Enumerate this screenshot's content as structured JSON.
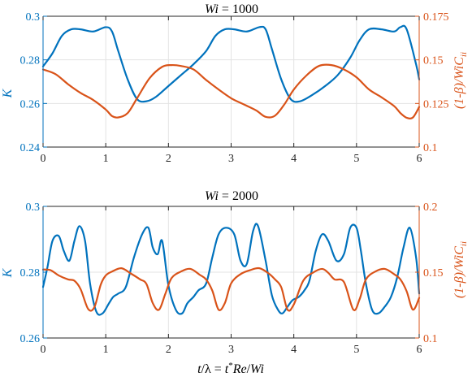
{
  "colors": {
    "left_axis": "#0072BD",
    "right_axis": "#D95319",
    "grid": "#e3e3e3",
    "axis": "#262626"
  },
  "chart_data": [
    {
      "type": "line",
      "title": "Wi = 1000",
      "xlabel": "",
      "ylabel_left": "K",
      "ylabel_right": "(1-β)/WiC_ii",
      "xlim": [
        0,
        6
      ],
      "ylim_left": [
        0.24,
        0.3
      ],
      "ylim_right": [
        0.1,
        0.175
      ],
      "xticks": [
        "0",
        "1",
        "2",
        "3",
        "4",
        "5",
        "6"
      ],
      "yticks_left": [
        "0.24",
        "0.26",
        "0.28",
        "0.3"
      ],
      "yticks_right": [
        "0.1",
        "0.125",
        "0.15",
        "0.175"
      ],
      "grid": true,
      "series": [
        {
          "axis": "left",
          "x": [
            0,
            0.15,
            0.3,
            0.45,
            0.6,
            0.8,
            1.0,
            1.1,
            1.2,
            1.35,
            1.5,
            1.65,
            1.8,
            2.0,
            2.2,
            2.4,
            2.6,
            2.75,
            2.9,
            3.05,
            3.25,
            3.45,
            3.55,
            3.65,
            3.8,
            3.95,
            4.1,
            4.3,
            4.5,
            4.7,
            4.9,
            5.05,
            5.2,
            5.4,
            5.6,
            5.7,
            5.8,
            5.95,
            6.0
          ],
          "values": [
            0.277,
            0.283,
            0.291,
            0.294,
            0.294,
            0.293,
            0.295,
            0.293,
            0.284,
            0.271,
            0.262,
            0.261,
            0.263,
            0.268,
            0.273,
            0.278,
            0.284,
            0.291,
            0.294,
            0.294,
            0.293,
            0.295,
            0.294,
            0.285,
            0.271,
            0.262,
            0.261,
            0.264,
            0.268,
            0.273,
            0.281,
            0.289,
            0.294,
            0.294,
            0.293,
            0.295,
            0.294,
            0.278,
            0.271
          ]
        },
        {
          "axis": "right",
          "x": [
            0,
            0.2,
            0.4,
            0.6,
            0.8,
            1.0,
            1.1,
            1.2,
            1.35,
            1.5,
            1.7,
            1.9,
            2.05,
            2.2,
            2.4,
            2.6,
            2.8,
            3.0,
            3.2,
            3.4,
            3.55,
            3.7,
            3.85,
            4.0,
            4.2,
            4.4,
            4.6,
            4.8,
            5.0,
            5.2,
            5.4,
            5.6,
            5.7,
            5.8,
            5.9,
            6.0
          ],
          "values": [
            0.1445,
            0.1418,
            0.136,
            0.131,
            0.127,
            0.1215,
            0.1178,
            0.117,
            0.1195,
            0.128,
            0.1395,
            0.146,
            0.147,
            0.1465,
            0.1445,
            0.1385,
            0.133,
            0.128,
            0.1245,
            0.121,
            0.1173,
            0.118,
            0.1245,
            0.133,
            0.141,
            0.1465,
            0.147,
            0.1445,
            0.14,
            0.133,
            0.1285,
            0.1235,
            0.1195,
            0.1168,
            0.117,
            0.123
          ]
        }
      ]
    },
    {
      "type": "line",
      "title": "Wi = 2000",
      "xlabel": "t/λ = t*Re/Wi",
      "ylabel_left": "K",
      "ylabel_right": "(1-β)/WiC_ii",
      "xlim": [
        0,
        6
      ],
      "ylim_left": [
        0.26,
        0.3
      ],
      "ylim_right": [
        0.1,
        0.2
      ],
      "xticks": [
        "0",
        "1",
        "2",
        "3",
        "4",
        "5",
        "6"
      ],
      "yticks_left": [
        "0.26",
        "0.28",
        "0.3"
      ],
      "yticks_right": [
        "0.1",
        "0.15",
        "0.2"
      ],
      "grid": true,
      "series": [
        {
          "axis": "left",
          "x": [
            0,
            0.07,
            0.15,
            0.25,
            0.33,
            0.42,
            0.5,
            0.58,
            0.67,
            0.75,
            0.85,
            0.95,
            1.05,
            1.12,
            1.2,
            1.32,
            1.45,
            1.58,
            1.68,
            1.75,
            1.83,
            1.9,
            2.0,
            2.12,
            2.22,
            2.3,
            2.4,
            2.48,
            2.6,
            2.7,
            2.8,
            2.92,
            3.05,
            3.15,
            3.25,
            3.35,
            3.43,
            3.55,
            3.65,
            3.75,
            3.82,
            3.9,
            3.98,
            4.08,
            4.17,
            4.25,
            4.35,
            4.45,
            4.55,
            4.68,
            4.8,
            4.9,
            5.0,
            5.07,
            5.15,
            5.25,
            5.35,
            5.45,
            5.55,
            5.65,
            5.75,
            5.85,
            5.95,
            6.0
          ],
          "values": [
            0.2755,
            0.2815,
            0.2895,
            0.291,
            0.2865,
            0.2835,
            0.2895,
            0.294,
            0.2895,
            0.2765,
            0.268,
            0.2675,
            0.2705,
            0.2725,
            0.2735,
            0.2755,
            0.2845,
            0.2915,
            0.2935,
            0.2875,
            0.2855,
            0.2895,
            0.276,
            0.2685,
            0.2675,
            0.2705,
            0.2725,
            0.2745,
            0.2765,
            0.2845,
            0.2915,
            0.2935,
            0.2915,
            0.2835,
            0.2825,
            0.2925,
            0.294,
            0.2835,
            0.273,
            0.2685,
            0.2675,
            0.2695,
            0.2715,
            0.2725,
            0.2745,
            0.2775,
            0.2865,
            0.2915,
            0.2895,
            0.2835,
            0.2855,
            0.2935,
            0.2935,
            0.2865,
            0.2765,
            0.2685,
            0.2675,
            0.2695,
            0.2725,
            0.2785,
            0.2875,
            0.2935,
            0.2845,
            0.2735
          ]
        },
        {
          "axis": "right",
          "x": [
            0,
            0.12,
            0.25,
            0.4,
            0.5,
            0.6,
            0.72,
            0.82,
            0.92,
            1.0,
            1.1,
            1.25,
            1.4,
            1.55,
            1.65,
            1.75,
            1.85,
            1.95,
            2.05,
            2.2,
            2.35,
            2.5,
            2.6,
            2.7,
            2.8,
            2.9,
            3.0,
            3.15,
            3.3,
            3.45,
            3.6,
            3.7,
            3.8,
            3.9,
            4.0,
            4.15,
            4.3,
            4.45,
            4.55,
            4.65,
            4.8,
            4.95,
            5.05,
            5.15,
            5.3,
            5.45,
            5.6,
            5.7,
            5.8,
            5.9,
            6.0
          ],
          "values": [
            0.152,
            0.1515,
            0.1475,
            0.1445,
            0.1435,
            0.137,
            0.122,
            0.1235,
            0.1405,
            0.1475,
            0.1505,
            0.153,
            0.149,
            0.1445,
            0.141,
            0.1265,
            0.1215,
            0.1335,
            0.1455,
            0.1505,
            0.1525,
            0.148,
            0.1445,
            0.136,
            0.1215,
            0.1265,
            0.1415,
            0.1485,
            0.1515,
            0.153,
            0.149,
            0.1445,
            0.1385,
            0.1215,
            0.1255,
            0.1435,
            0.1495,
            0.1525,
            0.1495,
            0.1445,
            0.1425,
            0.1215,
            0.1295,
            0.1445,
            0.1505,
            0.1525,
            0.1485,
            0.1445,
            0.1355,
            0.1215,
            0.1305
          ]
        }
      ]
    }
  ]
}
